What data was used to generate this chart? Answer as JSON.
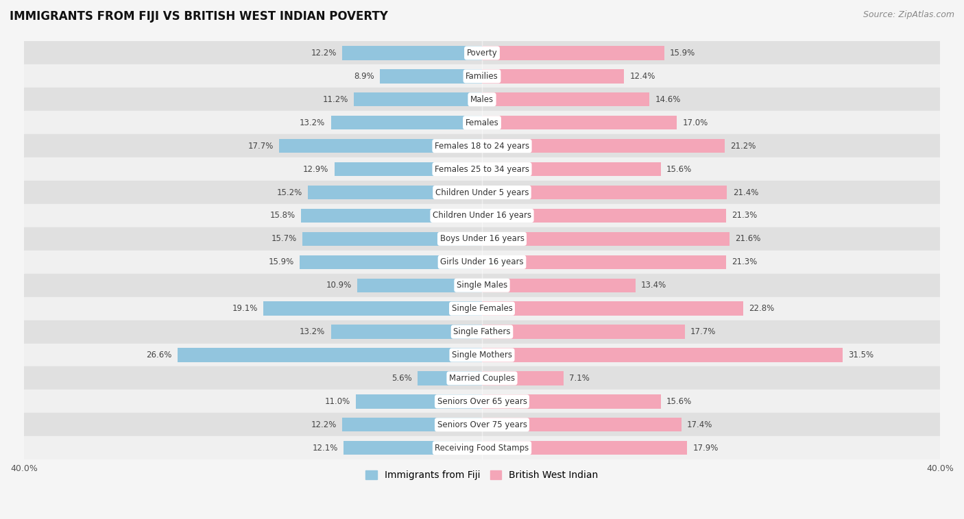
{
  "title": "IMMIGRANTS FROM FIJI VS BRITISH WEST INDIAN POVERTY",
  "source": "Source: ZipAtlas.com",
  "categories": [
    "Poverty",
    "Families",
    "Males",
    "Females",
    "Females 18 to 24 years",
    "Females 25 to 34 years",
    "Children Under 5 years",
    "Children Under 16 years",
    "Boys Under 16 years",
    "Girls Under 16 years",
    "Single Males",
    "Single Females",
    "Single Fathers",
    "Single Mothers",
    "Married Couples",
    "Seniors Over 65 years",
    "Seniors Over 75 years",
    "Receiving Food Stamps"
  ],
  "fiji_values": [
    12.2,
    8.9,
    11.2,
    13.2,
    17.7,
    12.9,
    15.2,
    15.8,
    15.7,
    15.9,
    10.9,
    19.1,
    13.2,
    26.6,
    5.6,
    11.0,
    12.2,
    12.1
  ],
  "bwi_values": [
    15.9,
    12.4,
    14.6,
    17.0,
    21.2,
    15.6,
    21.4,
    21.3,
    21.6,
    21.3,
    13.4,
    22.8,
    17.7,
    31.5,
    7.1,
    15.6,
    17.4,
    17.9
  ],
  "fiji_color": "#92c5de",
  "bwi_color": "#f4a6b8",
  "fiji_label": "Immigrants from Fiji",
  "bwi_label": "British West Indian",
  "axis_max": 40.0,
  "bar_height": 0.6,
  "bg_color": "#f5f5f5",
  "row_light_color": "#f0f0f0",
  "row_dark_color": "#e0e0e0",
  "label_fontsize": 8.5,
  "value_fontsize": 8.5,
  "title_fontsize": 12,
  "source_fontsize": 9
}
